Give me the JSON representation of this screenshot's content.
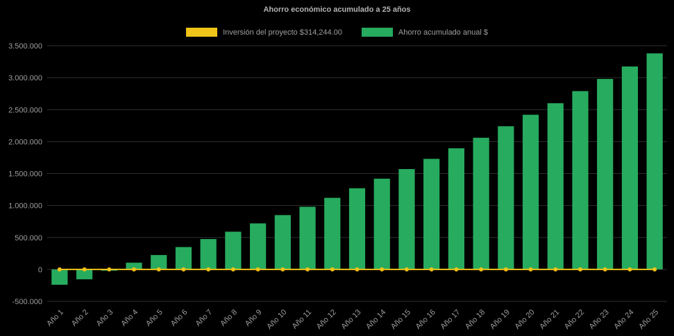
{
  "chart_data": {
    "type": "bar",
    "title": "Ahorro económico acumulado a 25 años",
    "xlabel": "",
    "ylabel": "",
    "ylim": [
      -500000,
      3500000
    ],
    "ytick_step": 500000,
    "grid": true,
    "legend_position": "top",
    "background": "#000000",
    "colors": {
      "bar": "#27ab5f",
      "line": "#f0c419",
      "grid": "#2f2f2f",
      "axis_text": "#9e9e9e"
    },
    "legend": [
      {
        "label": "Inversión del proyecto $314,244.00",
        "color": "#f0c419"
      },
      {
        "label": "Ahorro acumulado anual $",
        "color": "#27ab5f"
      }
    ],
    "categories": [
      "Año 1",
      "Año 2",
      "Año 3",
      "Año 4",
      "Año 5",
      "Año 6",
      "Año 7",
      "Año 8",
      "Año 9",
      "Año 10",
      "Año 11",
      "Año 12",
      "Año 13",
      "Año 14",
      "Año 15",
      "Año 16",
      "Año 17",
      "Año 18",
      "Año 19",
      "Año 20",
      "Año 21",
      "Año 22",
      "Año 23",
      "Año 24",
      "Año 25"
    ],
    "series": [
      {
        "name": "Inversión del proyecto $314,244.00",
        "type": "line",
        "value": 0
      },
      {
        "name": "Ahorro acumulado anual $",
        "type": "bar",
        "values": [
          -240000,
          -155000,
          -20000,
          105000,
          225000,
          350000,
          475000,
          590000,
          720000,
          850000,
          980000,
          1120000,
          1270000,
          1420000,
          1570000,
          1730000,
          1895000,
          2060000,
          2240000,
          2420000,
          2600000,
          2790000,
          2980000,
          3175000,
          3380000
        ]
      }
    ]
  }
}
